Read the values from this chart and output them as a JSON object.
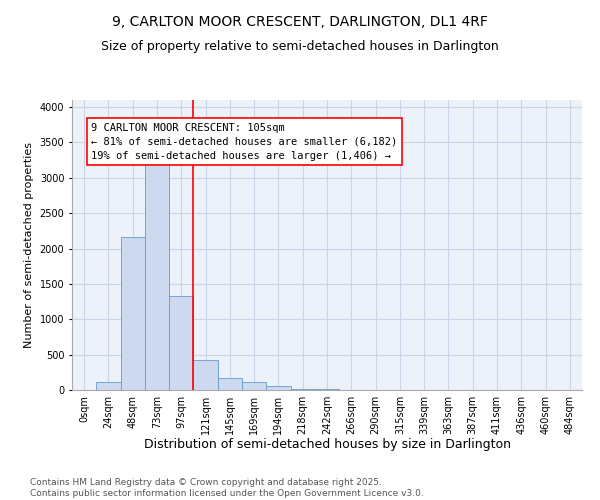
{
  "title": "9, CARLTON MOOR CRESCENT, DARLINGTON, DL1 4RF",
  "subtitle": "Size of property relative to semi-detached houses in Darlington",
  "xlabel": "Distribution of semi-detached houses by size in Darlington",
  "ylabel": "Number of semi-detached properties",
  "bar_labels": [
    "0sqm",
    "24sqm",
    "48sqm",
    "73sqm",
    "97sqm",
    "121sqm",
    "145sqm",
    "169sqm",
    "194sqm",
    "218sqm",
    "242sqm",
    "266sqm",
    "290sqm",
    "315sqm",
    "339sqm",
    "363sqm",
    "387sqm",
    "411sqm",
    "436sqm",
    "460sqm",
    "484sqm"
  ],
  "bar_values": [
    0,
    115,
    2170,
    3250,
    1330,
    430,
    175,
    115,
    60,
    20,
    10,
    5,
    2,
    0,
    0,
    0,
    0,
    0,
    0,
    0,
    0
  ],
  "bar_color": "#ccd9ee",
  "bar_edge_color": "#6699cc",
  "vline_color": "red",
  "annotation_text": "9 CARLTON MOOR CRESCENT: 105sqm\n← 81% of semi-detached houses are smaller (6,182)\n19% of semi-detached houses are larger (1,406) →",
  "annotation_box_color": "white",
  "annotation_box_edge": "red",
  "ylim": [
    0,
    4100
  ],
  "yticks": [
    0,
    500,
    1000,
    1500,
    2000,
    2500,
    3000,
    3500,
    4000
  ],
  "footnote": "Contains HM Land Registry data © Crown copyright and database right 2025.\nContains public sector information licensed under the Open Government Licence v3.0.",
  "bg_color": "#edf1f9",
  "grid_color": "#c8d4e8",
  "title_fontsize": 10,
  "subtitle_fontsize": 9,
  "xlabel_fontsize": 9,
  "ylabel_fontsize": 8,
  "tick_fontsize": 7,
  "annotation_fontsize": 7.5,
  "footnote_fontsize": 6.5
}
